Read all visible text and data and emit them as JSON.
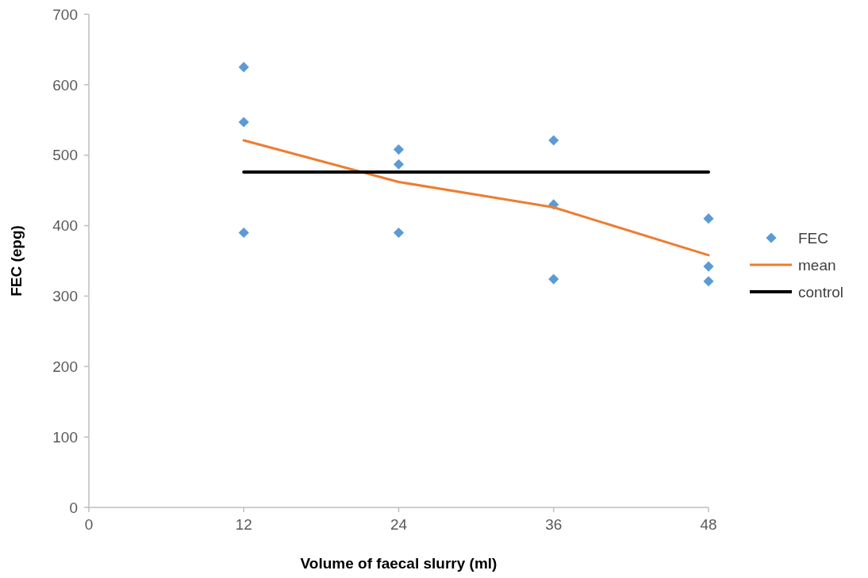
{
  "chart_data": {
    "type": "scatter",
    "xlabel": "Volume of faecal slurry (ml)",
    "ylabel": "FEC (epg)",
    "xlim": [
      0,
      48
    ],
    "xticks": [
      0,
      12,
      24,
      36,
      48
    ],
    "ylim": [
      0,
      700
    ],
    "yticks": [
      0,
      100,
      200,
      300,
      400,
      500,
      600,
      700
    ],
    "grid": false,
    "legend": "right",
    "series": [
      {
        "name": "FEC",
        "marker": "diamond",
        "color": "#5b9bd5",
        "x": [
          12,
          12,
          12,
          24,
          24,
          24,
          36,
          36,
          36,
          48,
          48,
          48
        ],
        "values": [
          625,
          547,
          390,
          508,
          487,
          390,
          521,
          430,
          324,
          410,
          342,
          321
        ]
      },
      {
        "name": "mean",
        "type": "line",
        "marker": "none",
        "color": "#ed7d31",
        "x": [
          12,
          24,
          36,
          48
        ],
        "values": [
          521,
          462,
          426,
          358
        ]
      },
      {
        "name": "control",
        "type": "line",
        "marker": "none",
        "color": "#000000",
        "x": [
          12,
          48
        ],
        "values": [
          476,
          476
        ]
      }
    ]
  }
}
